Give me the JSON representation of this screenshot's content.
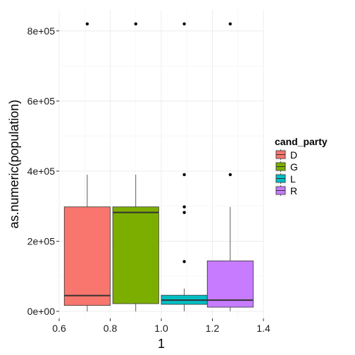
{
  "chart_data": {
    "type": "boxplot",
    "xlabel": "1",
    "ylabel": "as.numeric(population)",
    "xlim": [
      0.6,
      1.4
    ],
    "ylim": [
      -20000,
      860000
    ],
    "x_ticks": [
      0.6,
      0.8,
      1.0,
      1.2,
      1.4
    ],
    "x_tick_labels": [
      "0.6",
      "0.8",
      "1.0",
      "1.2",
      "1.4"
    ],
    "y_ticks": [
      0,
      200000,
      400000,
      600000,
      800000
    ],
    "y_tick_labels": [
      "0e+00",
      "2e+05",
      "4e+05",
      "6e+05",
      "8e+05"
    ],
    "grid": true,
    "legend": {
      "title": "cand_party",
      "position": "right",
      "entries": [
        {
          "label": "D",
          "color": "#F8766D"
        },
        {
          "label": "G",
          "color": "#7CAE00"
        },
        {
          "label": "L",
          "color": "#00BFC4"
        },
        {
          "label": "R",
          "color": "#C77CFF"
        }
      ]
    },
    "boxes": [
      {
        "group": "D",
        "x_center": 0.71,
        "half_width": 0.09,
        "q1": 17000,
        "median": 45000,
        "q3": 298000,
        "whisker_low": 0,
        "whisker_high": 390000,
        "outliers": [
          820000
        ],
        "color": "#F8766D"
      },
      {
        "group": "G",
        "x_center": 0.9,
        "half_width": 0.09,
        "q1": 22000,
        "median": 282000,
        "q3": 298000,
        "whisker_low": 0,
        "whisker_high": 390000,
        "outliers": [
          820000
        ],
        "color": "#7CAE00"
      },
      {
        "group": "L",
        "x_center": 1.09,
        "half_width": 0.09,
        "q1": 20000,
        "median": 32000,
        "q3": 46000,
        "whisker_low": 0,
        "whisker_high": 65000,
        "outliers": [
          142000,
          282000,
          298000,
          390000,
          820000
        ],
        "color": "#00BFC4"
      },
      {
        "group": "R",
        "x_center": 1.27,
        "half_width": 0.09,
        "q1": 12000,
        "median": 32000,
        "q3": 144000,
        "whisker_low": 0,
        "whisker_high": 298000,
        "outliers": [
          390000,
          820000
        ],
        "color": "#C77CFF"
      }
    ]
  }
}
